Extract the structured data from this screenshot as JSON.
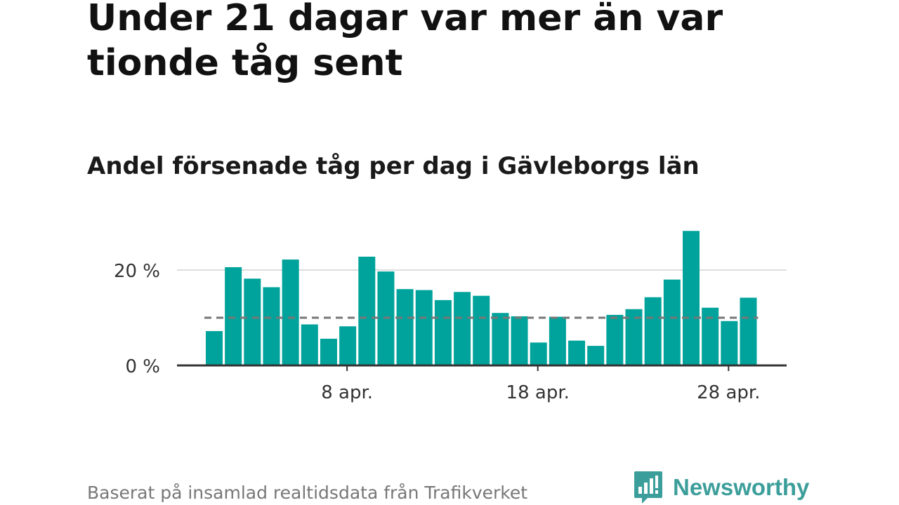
{
  "title": "Under 21 dagar var mer än var tionde tåg sent",
  "subtitle": "Andel försenade tåg per dag i Gävleborgs län",
  "footer": "Baserat på insamlad realtidsdata från Trafikverket",
  "brand": {
    "name": "Newsworthy",
    "logo_icon": "bar-chart-speech-bubble-icon",
    "color": "#3c9e9a"
  },
  "chart_data": {
    "type": "bar",
    "x": [
      "1 apr.",
      "2 apr.",
      "3 apr.",
      "4 apr.",
      "5 apr.",
      "6 apr.",
      "7 apr.",
      "8 apr.",
      "9 apr.",
      "10 apr.",
      "11 apr.",
      "12 apr.",
      "13 apr.",
      "14 apr.",
      "15 apr.",
      "16 apr.",
      "17 apr.",
      "18 apr.",
      "19 apr.",
      "20 apr.",
      "21 apr.",
      "22 apr.",
      "23 apr.",
      "24 apr.",
      "25 apr.",
      "26 apr.",
      "27 apr.",
      "28 apr.",
      "29 apr."
    ],
    "values": [
      7.2,
      20.6,
      18.2,
      16.4,
      22.2,
      8.6,
      5.6,
      8.2,
      22.8,
      19.7,
      16.0,
      15.8,
      13.7,
      15.4,
      14.6,
      11.0,
      10.3,
      4.8,
      10.2,
      5.2,
      4.1,
      10.6,
      11.8,
      14.3,
      18.0,
      28.2,
      12.1,
      9.3,
      14.2
    ],
    "x_ticks": [
      "8 apr.",
      "18 apr.",
      "28 apr."
    ],
    "y_ticks": [
      0,
      20
    ],
    "y_tick_labels": [
      "0 %",
      "20 %"
    ],
    "ylim": [
      0,
      30
    ],
    "reference_line": {
      "value": 10,
      "style": "dashed",
      "color": "#777777"
    },
    "bar_color": "#00a39b",
    "grid": true
  }
}
